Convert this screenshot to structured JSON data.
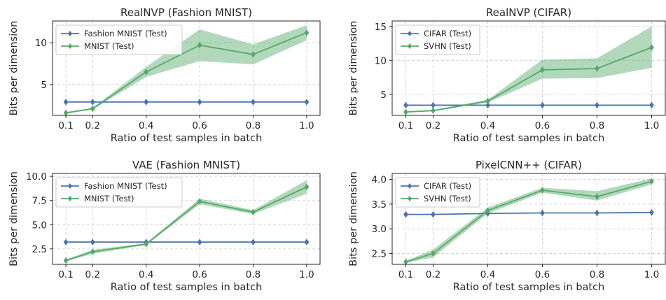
{
  "colors": {
    "test_series": "#4c72b0",
    "other_series": "#55a868",
    "band": "#55a868",
    "grid": "#cccccc",
    "axis": "#262626"
  },
  "chart_data": [
    {
      "type": "line",
      "title": "RealNVP (Fashion MNIST)",
      "xlabel": "Ratio of test samples in batch",
      "ylabel": "Bits per dimension",
      "xlim": [
        0.05,
        1.05
      ],
      "ylim": [
        1.3,
        12.6
      ],
      "xticks": [
        0.1,
        0.2,
        0.4,
        0.6,
        0.8,
        1.0
      ],
      "xtick_labels": [
        "0.1",
        "0.2",
        "0.4",
        "0.6",
        "0.8",
        "1.0"
      ],
      "yticks": [
        5,
        10
      ],
      "ytick_labels": [
        "5",
        "10"
      ],
      "grid": true,
      "legend_position": "upper-left",
      "x": [
        0.1,
        0.2,
        0.4,
        0.6,
        0.8,
        1.0
      ],
      "series": [
        {
          "name": "Fashion MNIST (Test)",
          "color": "#4c72b0",
          "values": [
            2.9,
            2.9,
            2.9,
            2.9,
            2.9,
            2.9
          ]
        },
        {
          "name": "MNIST (Test)",
          "color": "#55a868",
          "values": [
            1.6,
            2.1,
            6.5,
            9.7,
            8.6,
            11.2
          ],
          "band_low": [
            1.5,
            2.0,
            5.9,
            7.8,
            7.4,
            10.3
          ],
          "band_high": [
            1.7,
            2.2,
            7.1,
            11.6,
            9.8,
            12.1
          ]
        }
      ]
    },
    {
      "type": "line",
      "title": "RealNVP (CIFAR)",
      "xlabel": "Ratio of test samples in batch",
      "ylabel": "Bits per dimension",
      "xlim": [
        0.05,
        1.05
      ],
      "ylim": [
        1.9,
        15.8
      ],
      "xticks": [
        0.1,
        0.2,
        0.4,
        0.6,
        0.8,
        1.0
      ],
      "xtick_labels": [
        "0.1",
        "0.2",
        "0.4",
        "0.6",
        "0.8",
        "1.0"
      ],
      "yticks": [
        5,
        10,
        15
      ],
      "ytick_labels": [
        "5",
        "10",
        "15"
      ],
      "grid": true,
      "legend_position": "upper-left",
      "x": [
        0.1,
        0.2,
        0.4,
        0.6,
        0.8,
        1.0
      ],
      "series": [
        {
          "name": "CIFAR (Test)",
          "color": "#4c72b0",
          "values": [
            3.4,
            3.4,
            3.4,
            3.4,
            3.4,
            3.4
          ]
        },
        {
          "name": "SVHN (Test)",
          "color": "#55a868",
          "values": [
            2.4,
            2.6,
            4.0,
            8.6,
            8.8,
            11.9
          ],
          "band_low": [
            2.3,
            2.5,
            3.8,
            7.3,
            7.4,
            8.9
          ],
          "band_high": [
            2.5,
            2.7,
            4.2,
            10.1,
            10.3,
            15.0
          ]
        }
      ]
    },
    {
      "type": "line",
      "title": "VAE (Fashion MNIST)",
      "xlabel": "Ratio of test samples in batch",
      "ylabel": "Bits per dimension",
      "xlim": [
        0.05,
        1.05
      ],
      "ylim": [
        0.9,
        10.3
      ],
      "xticks": [
        0.1,
        0.2,
        0.4,
        0.6,
        0.8,
        1.0
      ],
      "xtick_labels": [
        "0.1",
        "0.2",
        "0.4",
        "0.6",
        "0.8",
        "1.0"
      ],
      "yticks": [
        2.5,
        5.0,
        7.5,
        10.0
      ],
      "ytick_labels": [
        "2.5",
        "5.0",
        "7.5",
        "10.0"
      ],
      "grid": true,
      "legend_position": "upper-left",
      "x": [
        0.1,
        0.2,
        0.4,
        0.6,
        0.8,
        1.0
      ],
      "series": [
        {
          "name": "Fashion MNIST (Test)",
          "color": "#4c72b0",
          "values": [
            3.2,
            3.2,
            3.2,
            3.2,
            3.2,
            3.2
          ]
        },
        {
          "name": "MNIST (Test)",
          "color": "#55a868",
          "values": [
            1.3,
            2.2,
            3.0,
            7.4,
            6.3,
            8.9
          ],
          "band_low": [
            1.2,
            2.0,
            2.9,
            7.1,
            6.1,
            8.2
          ],
          "band_high": [
            1.4,
            2.4,
            3.1,
            7.7,
            6.5,
            9.6
          ]
        }
      ]
    },
    {
      "type": "line",
      "title": "PixelCNN++ (CIFAR)",
      "xlabel": "Ratio of test samples in batch",
      "ylabel": "Bits per dimension",
      "xlim": [
        0.05,
        1.05
      ],
      "ylim": [
        2.28,
        4.12
      ],
      "xticks": [
        0.1,
        0.2,
        0.4,
        0.6,
        0.8,
        1.0
      ],
      "xtick_labels": [
        "0.1",
        "0.2",
        "0.4",
        "0.6",
        "0.8",
        "1.0"
      ],
      "yticks": [
        2.5,
        3.0,
        3.5,
        4.0
      ],
      "ytick_labels": [
        "2.5",
        "3.0",
        "3.5",
        "4.0"
      ],
      "grid": true,
      "legend_position": "upper-left",
      "x": [
        0.1,
        0.2,
        0.4,
        0.6,
        0.8,
        1.0
      ],
      "series": [
        {
          "name": "CIFAR (Test)",
          "color": "#4c72b0",
          "values": [
            3.29,
            3.29,
            3.31,
            3.32,
            3.32,
            3.33
          ]
        },
        {
          "name": "SVHN (Test)",
          "color": "#55a868",
          "values": [
            2.33,
            2.5,
            3.37,
            3.78,
            3.65,
            3.96
          ],
          "band_low": [
            2.31,
            2.42,
            3.31,
            3.73,
            3.57,
            3.9
          ],
          "band_high": [
            2.35,
            2.58,
            3.43,
            3.83,
            3.76,
            4.02
          ]
        }
      ]
    }
  ]
}
